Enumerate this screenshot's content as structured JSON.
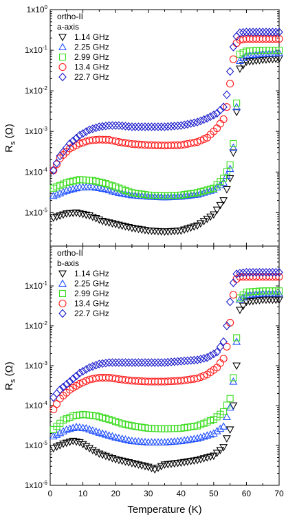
{
  "chart_data": [
    {
      "type": "scatter",
      "title": "",
      "annotation_lines": [
        "ortho-II",
        "a-axis"
      ],
      "xlabel": "",
      "ylabel": "R_s (Ω)",
      "ylabel_main": "R",
      "ylabel_sub": "s",
      "ylabel_unit": " (Ω)",
      "y_scale": "log",
      "xlim": [
        0,
        70
      ],
      "ylim": [
        1.5e-06,
        1
      ],
      "y_ticks": [
        {
          "mant": "1x10",
          "exp": "-5",
          "value": 1e-05
        },
        {
          "mant": "1x10",
          "exp": "-4",
          "value": 0.0001
        },
        {
          "mant": "1x10",
          "exp": "-3",
          "value": 0.001
        },
        {
          "mant": "1x10",
          "exp": "-2",
          "value": 0.01
        },
        {
          "mant": "1x10",
          "exp": "-1",
          "value": 0.1
        },
        {
          "mant": "1x10",
          "exp": "0",
          "value": 1
        }
      ],
      "legend_placement": "top-left",
      "series": [
        {
          "name": "1.14 GHz",
          "marker": "triangle-down",
          "color": "#000000",
          "x": [
            1,
            5,
            8,
            12,
            16,
            20,
            25,
            30,
            35,
            40,
            45,
            50,
            53,
            55,
            56,
            57,
            58,
            60,
            65,
            70
          ],
          "y": [
            7.5e-06,
            9.5e-06,
            1e-05,
            8.5e-06,
            6.2e-06,
            5.2e-06,
            4.2e-06,
            3.6e-06,
            3.4e-06,
            3.6e-06,
            4.8e-06,
            9e-06,
            2e-05,
            7e-05,
            0.0003,
            0.003,
            0.035,
            0.052,
            0.058,
            0.062
          ]
        },
        {
          "name": "2.25 GHz",
          "marker": "triangle-up",
          "color": "#1f4fff",
          "x": [
            1,
            5,
            9,
            13,
            17,
            20,
            25,
            30,
            35,
            40,
            45,
            50,
            53,
            55,
            56,
            57,
            58,
            60,
            65,
            70
          ],
          "y": [
            2.6e-05,
            3.5e-05,
            4.2e-05,
            4.3e-05,
            3.8e-05,
            3.2e-05,
            2.7e-05,
            2.5e-05,
            2.4e-05,
            2.5e-05,
            2.8e-05,
            3.7e-05,
            5.5e-05,
            0.00012,
            0.0004,
            0.004,
            0.055,
            0.075,
            0.082,
            0.085
          ]
        },
        {
          "name": "2.99 GHz",
          "marker": "square",
          "color": "#3bdc1f",
          "x": [
            1,
            5,
            9,
            13,
            17,
            20,
            25,
            30,
            35,
            40,
            45,
            50,
            53,
            55,
            56,
            57,
            58,
            60,
            65,
            70
          ],
          "y": [
            4e-05,
            5.5e-05,
            6.5e-05,
            6.2e-05,
            5.2e-05,
            4.3e-05,
            3.1e-05,
            2.7e-05,
            2.6e-05,
            2.7e-05,
            3.1e-05,
            4e-05,
            7e-05,
            0.00015,
            0.0005,
            0.005,
            0.08,
            0.095,
            0.1,
            0.1
          ]
        },
        {
          "name": "13.4 GHz",
          "marker": "circle",
          "color": "#ff1a1a",
          "x": [
            1,
            3,
            6,
            9,
            12,
            15,
            18,
            21,
            25,
            30,
            35,
            40,
            45,
            48,
            51,
            53,
            54,
            55,
            56,
            57,
            58,
            60,
            65,
            70
          ],
          "y": [
            0.00011,
            0.00022,
            0.00038,
            0.0005,
            0.0006,
            0.00063,
            0.00062,
            0.00055,
            0.00049,
            0.00046,
            0.00045,
            0.00046,
            0.00055,
            0.0007,
            0.0012,
            0.002,
            0.004,
            0.015,
            0.06,
            0.15,
            0.18,
            0.19,
            0.19,
            0.19
          ]
        },
        {
          "name": "22.7 GHz",
          "marker": "diamond",
          "color": "#1a1acc",
          "x": [
            1,
            3,
            6,
            9,
            12,
            15,
            18,
            21,
            25,
            30,
            35,
            40,
            42,
            45,
            48,
            51,
            53,
            54,
            55,
            56,
            57,
            58,
            60,
            65,
            70
          ],
          "y": [
            0.00011,
            0.00025,
            0.0005,
            0.0008,
            0.0011,
            0.0013,
            0.0014,
            0.0014,
            0.0013,
            0.0013,
            0.0013,
            0.0014,
            0.0015,
            0.0017,
            0.0021,
            0.0028,
            0.004,
            0.008,
            0.03,
            0.12,
            0.22,
            0.27,
            0.28,
            0.28,
            0.28
          ]
        }
      ]
    },
    {
      "type": "scatter",
      "title": "",
      "annotation_lines": [
        "ortho-II",
        "b-axis"
      ],
      "xlabel": "Temperature (K)",
      "ylabel": "R_s (Ω)",
      "ylabel_main": "R",
      "ylabel_sub": "s",
      "ylabel_unit": " (Ω)",
      "y_scale": "log",
      "xlim": [
        0,
        70
      ],
      "ylim": [
        1e-06,
        1
      ],
      "x_ticks": [
        "0",
        "10",
        "20",
        "30",
        "40",
        "50",
        "60",
        "70"
      ],
      "y_ticks": [
        {
          "mant": "1x10",
          "exp": "-6",
          "value": 1e-06
        },
        {
          "mant": "1x10",
          "exp": "-5",
          "value": 1e-05
        },
        {
          "mant": "1x10",
          "exp": "-4",
          "value": 0.0001
        },
        {
          "mant": "1x10",
          "exp": "-3",
          "value": 0.001
        },
        {
          "mant": "1x10",
          "exp": "-2",
          "value": 0.01
        },
        {
          "mant": "1x10",
          "exp": "-1",
          "value": 0.1
        }
      ],
      "legend_placement": "top-left",
      "series": [
        {
          "name": "1.14 GHz",
          "marker": "triangle-down",
          "color": "#000000",
          "x": [
            1,
            4,
            7,
            9,
            12,
            15,
            20,
            25,
            30,
            32,
            35,
            40,
            45,
            50,
            53,
            55,
            56,
            57,
            58,
            60,
            65,
            70
          ],
          "y": [
            8.5e-06,
            1.1e-05,
            1.3e-05,
            1.2e-05,
            8.5e-06,
            6.2e-06,
            4.5e-06,
            3.6e-06,
            2.9e-06,
            2.5e-06,
            3.3e-06,
            3.7e-06,
            4.3e-06,
            5.5e-06,
            9e-06,
            2.5e-05,
            0.0001,
            0.001,
            0.025,
            0.04,
            0.045,
            0.045
          ]
        },
        {
          "name": "2.25 GHz",
          "marker": "triangle-up",
          "color": "#1f4fff",
          "x": [
            1,
            5,
            8,
            11,
            15,
            20,
            25,
            30,
            35,
            40,
            45,
            50,
            53,
            55,
            56,
            57,
            58,
            60,
            65,
            70
          ],
          "y": [
            1.7e-05,
            2.5e-05,
            2.9e-05,
            2.7e-05,
            2.1e-05,
            1.6e-05,
            1.3e-05,
            1.2e-05,
            1.2e-05,
            1.3e-05,
            1.5e-05,
            2e-05,
            3e-05,
            9e-05,
            0.0004,
            0.004,
            0.045,
            0.06,
            0.065,
            0.065
          ]
        },
        {
          "name": "2.99 GHz",
          "marker": "square",
          "color": "#3bdc1f",
          "x": [
            1,
            4,
            7,
            10,
            14,
            18,
            22,
            26,
            30,
            35,
            40,
            45,
            50,
            53,
            55,
            56,
            57,
            58,
            60,
            65,
            70
          ],
          "y": [
            2.5e-05,
            4.3e-05,
            5.5e-05,
            6e-05,
            5.5e-05,
            4.5e-05,
            3.5e-05,
            3e-05,
            2.7e-05,
            2.6e-05,
            2.7e-05,
            3.1e-05,
            4.5e-05,
            7e-05,
            0.00015,
            0.0005,
            0.005,
            0.05,
            0.07,
            0.075,
            0.075
          ]
        },
        {
          "name": "13.4 GHz",
          "marker": "circle",
          "color": "#ff1a1a",
          "x": [
            1,
            3,
            6,
            9,
            12,
            15,
            18,
            21,
            25,
            30,
            35,
            40,
            45,
            48,
            51,
            53,
            54,
            55,
            56,
            57,
            58,
            60,
            65,
            70
          ],
          "y": [
            8e-05,
            0.00015,
            0.00025,
            0.00035,
            0.00045,
            0.0005,
            0.0005,
            0.00046,
            0.00042,
            0.0004,
            0.0004,
            0.00042,
            0.00048,
            0.0006,
            0.0009,
            0.0015,
            0.003,
            0.012,
            0.06,
            0.15,
            0.17,
            0.17,
            0.17,
            0.17
          ]
        },
        {
          "name": "22.7 GHz",
          "marker": "diamond",
          "color": "#1a1acc",
          "x": [
            1,
            3,
            6,
            9,
            12,
            15,
            18,
            21,
            25,
            30,
            35,
            40,
            45,
            48,
            51,
            53,
            54,
            55,
            56,
            57,
            58,
            60,
            65,
            70
          ],
          "y": [
            0.00016,
            0.00025,
            0.0004,
            0.00065,
            0.0009,
            0.0011,
            0.0012,
            0.0012,
            0.0012,
            0.0012,
            0.0012,
            0.0013,
            0.0014,
            0.0016,
            0.0022,
            0.004,
            0.01,
            0.04,
            0.12,
            0.2,
            0.21,
            0.22,
            0.22,
            0.22
          ]
        }
      ]
    }
  ]
}
